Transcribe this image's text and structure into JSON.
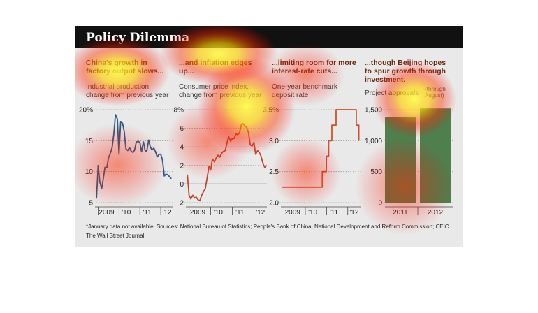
{
  "title": "Policy Dilemma",
  "panels": [
    {
      "headline": "China's growth in factory output slows...",
      "subtitle": "Industrial production, change from previous year"
    },
    {
      "headline": "...and inflation edges up...",
      "subtitle": "Consumer price index, change from previous year"
    },
    {
      "headline": "...limiting room for more interest-rate cuts...",
      "subtitle": "One-year benchmark deposit rate"
    },
    {
      "headline": "...though Beijing hopes to spur growth through investment.",
      "subtitle": "Project approvals",
      "subtitle_note": "(through August)"
    }
  ],
  "source": "*January data not available; Sources: National Bureau of Statistics; People's Bank of China; National Development and Reform Commission; CEIC",
  "credit": "The Wall Street Journal",
  "colors": {
    "blue": "#2e5b86",
    "red": "#c1482e",
    "orange": "#d2502a",
    "green": "#4f7f4d"
  },
  "chart_data": [
    {
      "type": "line",
      "ylim": [
        5,
        20
      ],
      "yticks": [
        "20%",
        "15",
        "10",
        "5"
      ],
      "x_tick_labels": [
        "2009",
        "'10",
        "'11",
        "'12"
      ],
      "x": [
        2008.92,
        2009.0,
        2009.08,
        2009.17,
        2009.25,
        2009.33,
        2009.42,
        2009.5,
        2009.58,
        2009.67,
        2009.75,
        2009.83,
        2009.92,
        2010.0,
        2010.08,
        2010.17,
        2010.25,
        2010.33,
        2010.42,
        2010.5,
        2010.58,
        2010.67,
        2010.75,
        2010.83,
        2010.92,
        2011.0,
        2011.08,
        2011.17,
        2011.25,
        2011.33,
        2011.42,
        2011.5,
        2011.58,
        2011.67,
        2011.75,
        2011.83,
        2011.92,
        2012.0,
        2012.08,
        2012.17,
        2012.25,
        2012.33,
        2012.42,
        2012.5
      ],
      "series": [
        {
          "values": [
            5.7,
            11.0,
            8.3,
            7.3,
            8.9,
            10.7,
            10.7,
            12.3,
            12.9,
            13.9,
            16.1,
            19.2,
            18.5,
            12.8,
            18.1,
            17.8,
            16.5,
            13.7,
            13.4,
            13.9,
            13.3,
            13.1,
            13.5,
            14.8,
            14.9,
            14.7,
            13.2,
            14.8,
            13.4,
            13.3,
            15.1,
            14.0,
            13.5,
            13.8,
            13.2,
            12.4,
            12.8,
            12.8,
            11.9,
            9.3,
            9.6,
            9.5,
            9.2,
            8.9
          ]
        }
      ]
    },
    {
      "type": "line",
      "ylim": [
        -2,
        8
      ],
      "yticks": [
        "8%",
        "6",
        "4",
        "2",
        "0",
        "-2"
      ],
      "x_tick_labels": [
        "2009",
        "'10",
        "'11",
        "'12"
      ],
      "x": [
        2008.92,
        2009.0,
        2009.08,
        2009.17,
        2009.25,
        2009.33,
        2009.42,
        2009.5,
        2009.58,
        2009.67,
        2009.75,
        2009.83,
        2009.92,
        2010.0,
        2010.08,
        2010.17,
        2010.25,
        2010.33,
        2010.42,
        2010.5,
        2010.58,
        2010.67,
        2010.75,
        2010.83,
        2010.92,
        2011.0,
        2011.08,
        2011.17,
        2011.25,
        2011.33,
        2011.42,
        2011.5,
        2011.58,
        2011.67,
        2011.75,
        2011.83,
        2011.92,
        2012.0,
        2012.08,
        2012.17,
        2012.25,
        2012.33,
        2012.42,
        2012.5,
        2012.58
      ],
      "series": [
        {
          "values": [
            1.0,
            -1.2,
            -1.6,
            -1.2,
            -1.5,
            -1.4,
            -1.7,
            -1.8,
            -1.2,
            -0.8,
            -0.5,
            0.6,
            1.9,
            1.5,
            2.7,
            2.4,
            2.8,
            3.1,
            2.9,
            3.3,
            3.5,
            3.6,
            4.4,
            5.1,
            4.6,
            4.9,
            4.9,
            5.4,
            5.3,
            5.5,
            6.4,
            6.5,
            6.2,
            6.1,
            5.5,
            4.2,
            4.1,
            4.5,
            3.2,
            3.6,
            3.4,
            3.0,
            2.2,
            1.8,
            2.0
          ]
        }
      ]
    },
    {
      "type": "line",
      "ylim": [
        2.0,
        3.5
      ],
      "yticks": [
        "3.5%",
        "3.0",
        "2.5",
        "2.0"
      ],
      "x_tick_labels": [
        "2009",
        "'10",
        "'11",
        "'12"
      ],
      "x": [
        2008.92,
        2009.0,
        2009.25,
        2009.5,
        2009.75,
        2010.0,
        2010.25,
        2010.5,
        2010.75,
        2010.8,
        2010.8,
        2010.99,
        2010.99,
        2011.1,
        2011.1,
        2011.25,
        2011.25,
        2011.45,
        2011.45,
        2011.6,
        2011.6,
        2012.0,
        2012.4,
        2012.4,
        2012.52,
        2012.52
      ],
      "series": [
        {
          "values": [
            2.25,
            2.25,
            2.25,
            2.25,
            2.25,
            2.25,
            2.25,
            2.25,
            2.25,
            2.25,
            2.5,
            2.5,
            2.75,
            2.75,
            3.0,
            3.0,
            3.25,
            3.25,
            3.5,
            3.5,
            3.5,
            3.5,
            3.5,
            3.25,
            3.25,
            3.0
          ]
        }
      ]
    },
    {
      "type": "bar",
      "categories": [
        "2011",
        "2012"
      ],
      "values": [
        1380,
        1520
      ],
      "ylim": [
        0,
        1500
      ],
      "yticks": [
        "1,500",
        "1,000",
        "500",
        "0"
      ]
    }
  ]
}
